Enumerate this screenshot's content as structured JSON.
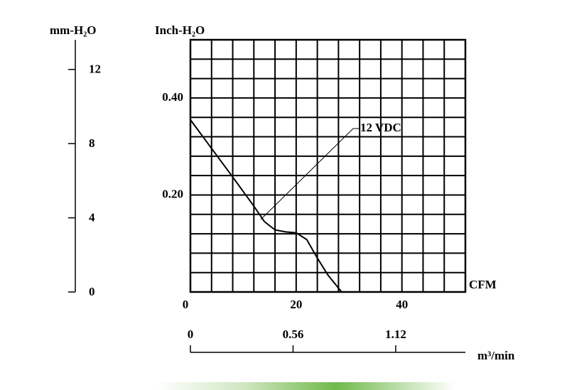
{
  "chart_data": {
    "type": "line",
    "xlabel": "CFM",
    "ylabel": "Inch-H₂O",
    "y2label": "mm-H₂O",
    "x2label": "m³/min",
    "series": [
      {
        "name": "12 VDC",
        "color": "#000000",
        "x": [
          0,
          4,
          8,
          12,
          14,
          16,
          18,
          20,
          22,
          24,
          26,
          28.6
        ],
        "values": [
          0.355,
          0.296,
          0.237,
          0.177,
          0.145,
          0.128,
          0.124,
          0.122,
          0.108,
          0.07,
          0.035,
          0
        ]
      }
    ],
    "xlim": [
      0,
      52
    ],
    "xticks": [
      0,
      20,
      40
    ],
    "ylim": [
      0,
      0.52
    ],
    "yticks": [
      {
        "value": 0.2,
        "label": "0.20"
      },
      {
        "value": 0.4,
        "label": "0.40"
      }
    ],
    "y2lim": [
      0,
      13.6
    ],
    "y2ticks": [
      0,
      4,
      8,
      12
    ],
    "x2lim": [
      0,
      1.5
    ],
    "x2ticks": [
      0,
      0.56,
      1.12
    ],
    "grid": {
      "x_step": 4,
      "y_step": 0.04
    }
  }
}
